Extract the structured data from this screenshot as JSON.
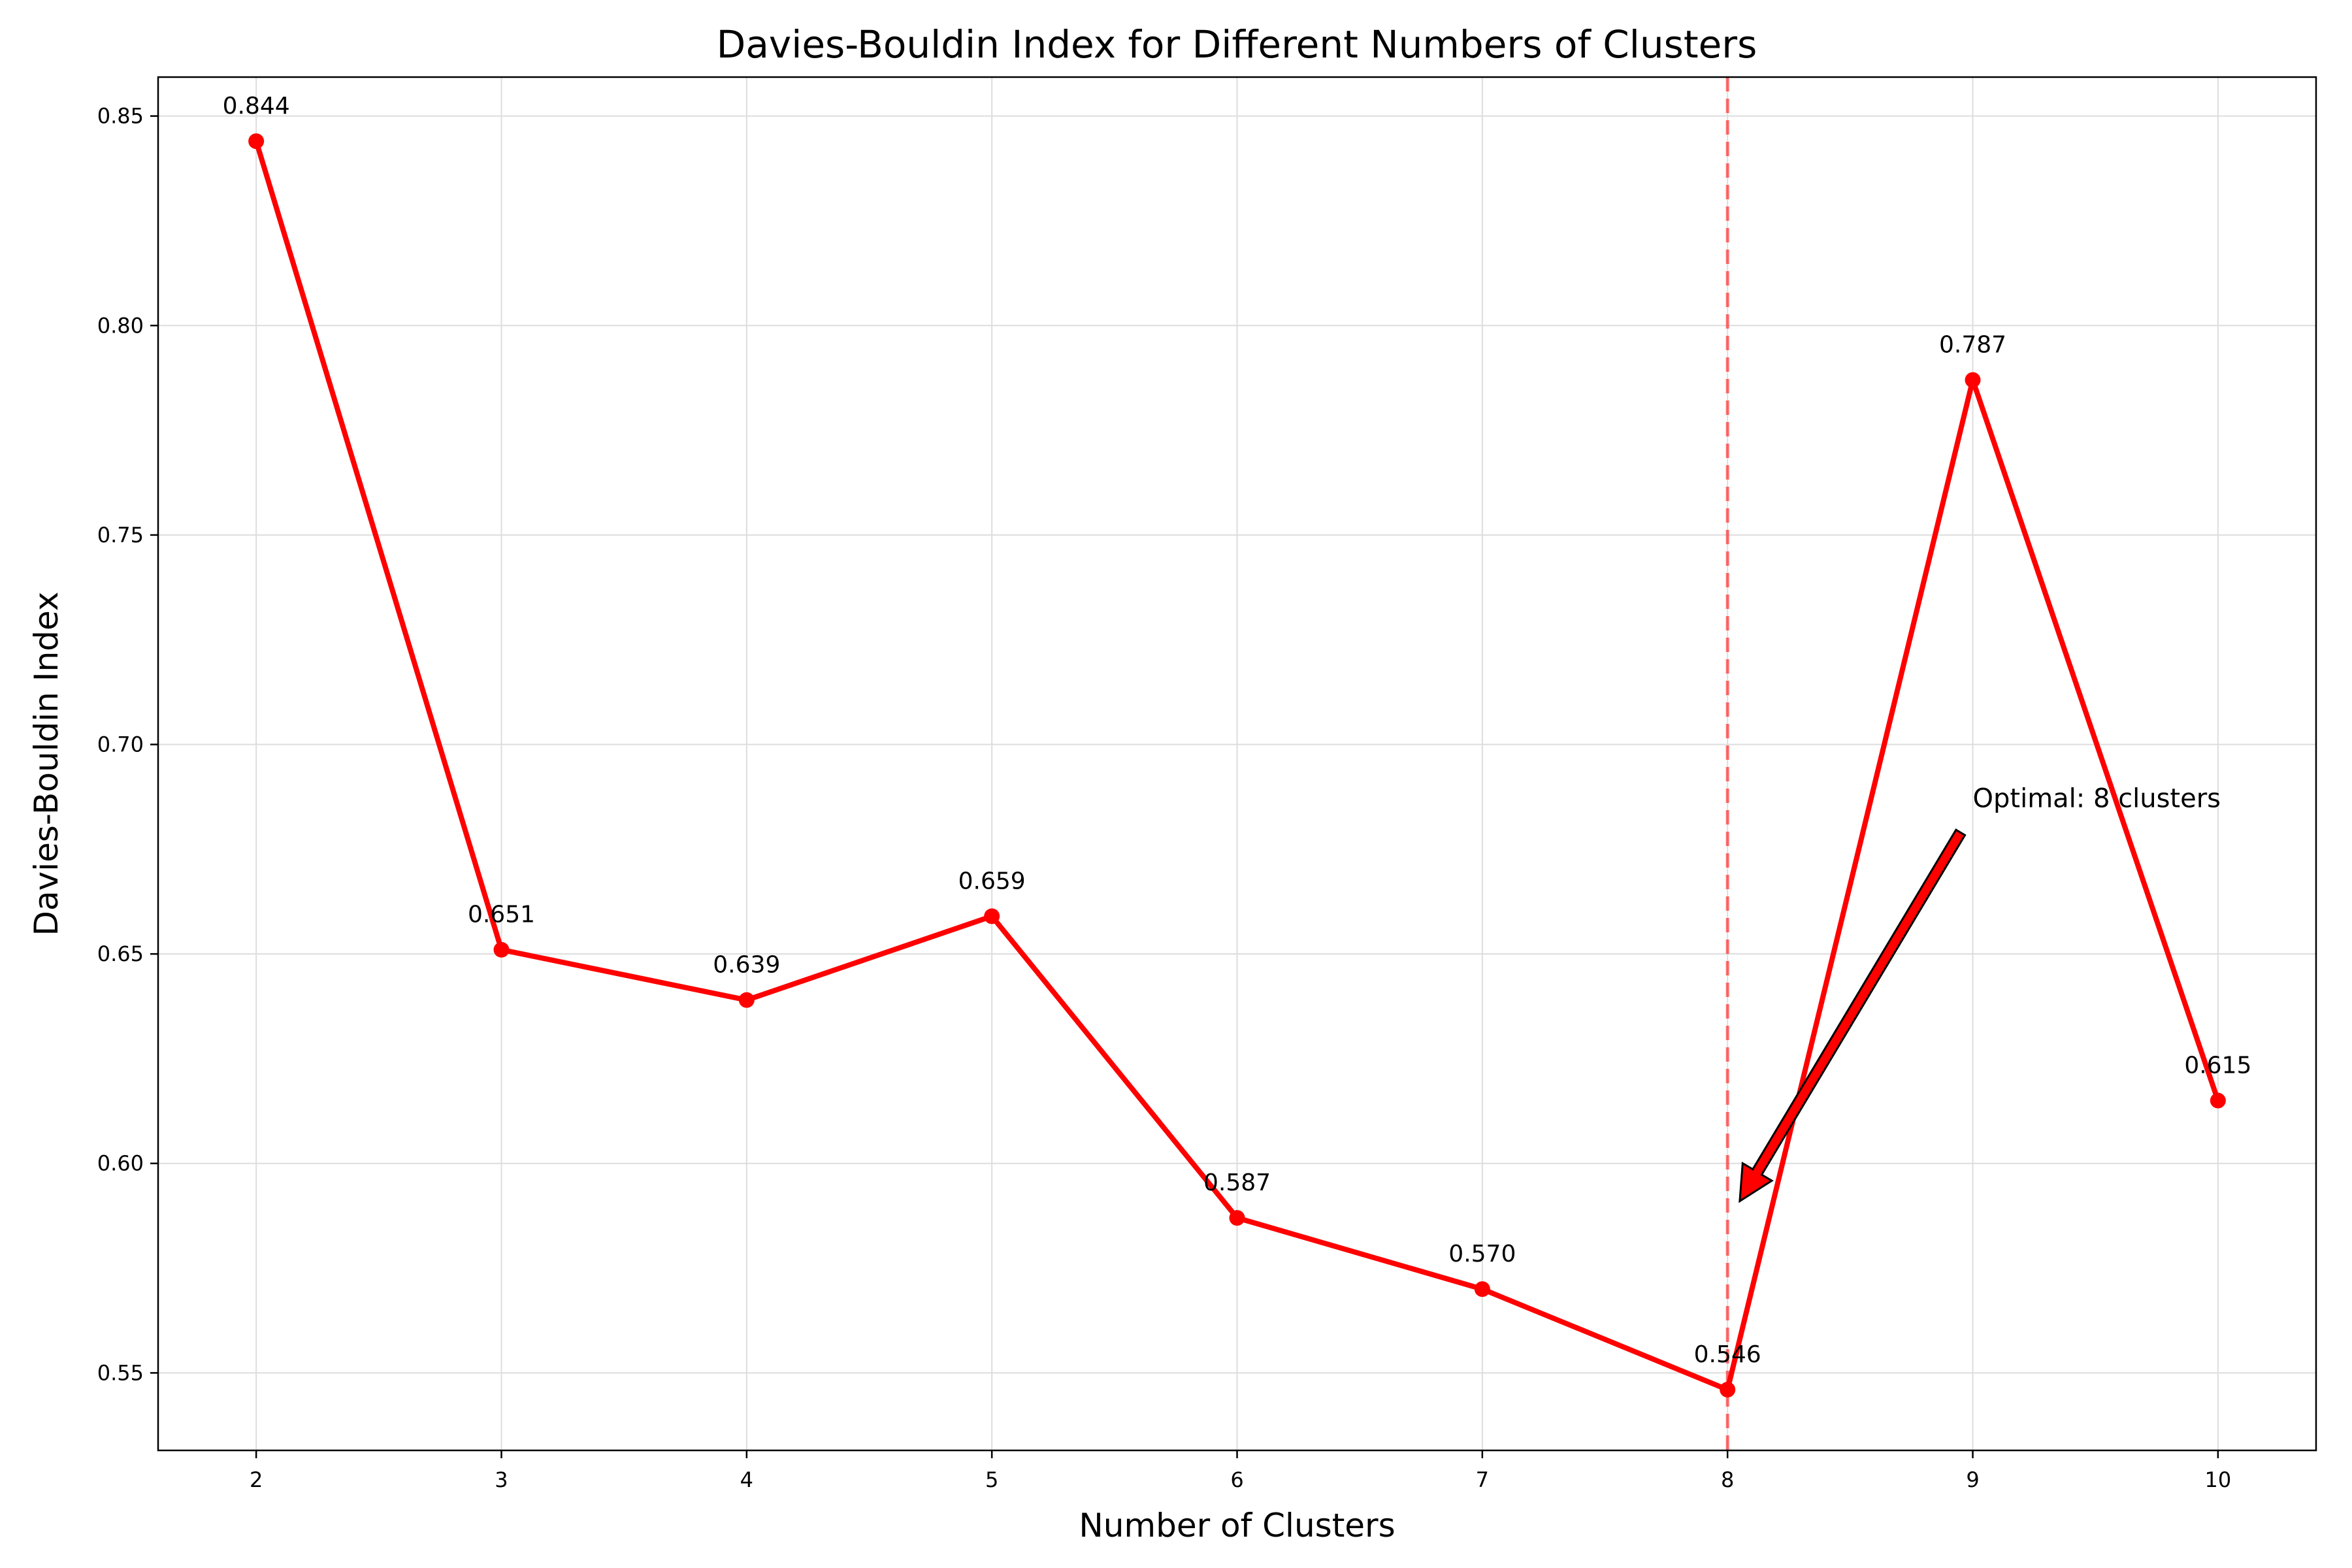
{
  "chart_data": {
    "type": "line",
    "title": "Davies-Bouldin Index for Different Numbers of Clusters",
    "xlabel": "Number of Clusters",
    "ylabel": "Davies-Bouldin Index",
    "x": [
      2,
      3,
      4,
      5,
      6,
      7,
      8,
      9,
      10
    ],
    "series": [
      {
        "values": [
          0.844,
          0.651,
          0.639,
          0.659,
          0.587,
          0.57,
          0.546,
          0.787,
          0.615
        ],
        "color": "#ff0000",
        "marker": "circle"
      }
    ],
    "data_labels": [
      "0.844",
      "0.651",
      "0.639",
      "0.659",
      "0.587",
      "0.570",
      "0.546",
      "0.787",
      "0.615"
    ],
    "xlim": [
      1.6,
      10.4
    ],
    "ylim": [
      0.5315,
      0.8593
    ],
    "xticks": [
      2,
      3,
      4,
      5,
      6,
      7,
      8,
      9,
      10
    ],
    "yticks": [
      0.55,
      0.6,
      0.65,
      0.7,
      0.75,
      0.8,
      0.85
    ],
    "ytick_labels": [
      "0.55",
      "0.60",
      "0.65",
      "0.70",
      "0.75",
      "0.80",
      "0.85"
    ],
    "grid": true,
    "reference_line": {
      "x": 8,
      "color": "#ff0000",
      "style": "dashed"
    },
    "annotation": {
      "text": "Optimal: 8 clusters",
      "text_at": {
        "x": 9,
        "y": 0.685
      },
      "arrow_from": {
        "x": 8.95,
        "y": 0.679
      },
      "arrow_to": {
        "x": 8.05,
        "y": 0.591
      },
      "arrow_color": "#ff0000"
    }
  }
}
